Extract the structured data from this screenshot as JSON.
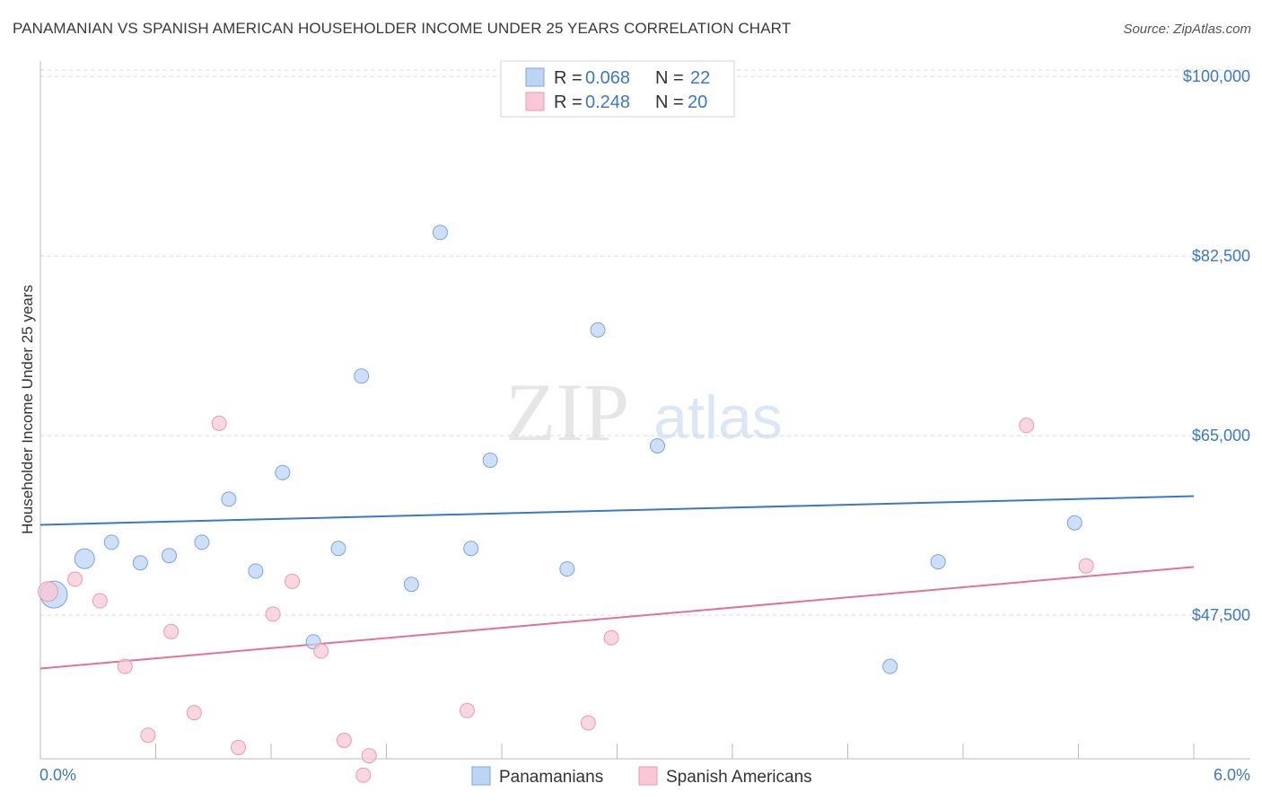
{
  "header": {
    "title": "PANAMANIAN VS SPANISH AMERICAN HOUSEHOLDER INCOME UNDER 25 YEARS CORRELATION CHART",
    "source": "Source: ZipAtlas.com"
  },
  "watermark": {
    "zip": "ZIP",
    "atlas": "atlas"
  },
  "colors": {
    "blue": "#3b78c8",
    "blue_fill": "#bcd5f5",
    "pink": "#e0729b",
    "pink_fill": "#f8c8d6",
    "grid": "#d9d9d9",
    "axis": "#bbbbbb"
  },
  "legend": {
    "rows": [
      {
        "r_label": "R = ",
        "r_value": "0.068",
        "n_label": "N = ",
        "n_value": "22",
        "series": "blue"
      },
      {
        "r_label": "R = ",
        "r_value": "0.248",
        "n_label": "N = ",
        "n_value": "20",
        "series": "pink"
      }
    ]
  },
  "bottom_legend": [
    "Panamanians",
    "Spanish Americans"
  ],
  "chart_data": {
    "type": "scatter",
    "title": "PANAMANIAN VS SPANISH AMERICAN HOUSEHOLDER INCOME UNDER 25 YEARS CORRELATION CHART",
    "xlabel": "",
    "ylabel": "Householder Income Under 25 years",
    "xlim": [
      0,
      6
    ],
    "ylim": [
      33500,
      101500
    ],
    "x_tick_labels": [
      "0.0%",
      "6.0%"
    ],
    "y_ticks": [
      47500,
      65000,
      82500,
      100000
    ],
    "y_tick_labels": [
      "$47,500",
      "$65,000",
      "$82,500",
      "$100,000"
    ],
    "grid": true,
    "series": [
      {
        "name": "Panamanians",
        "color": "blue",
        "r": 0.068,
        "n": 22,
        "trend": {
          "x": [
            0,
            6
          ],
          "y": [
            56300,
            59100
          ]
        },
        "points": [
          {
            "x": 0.07,
            "y": 49500,
            "size": "large"
          },
          {
            "x": 0.23,
            "y": 53000,
            "size": "medium"
          },
          {
            "x": 0.37,
            "y": 54600
          },
          {
            "x": 0.52,
            "y": 52600
          },
          {
            "x": 0.67,
            "y": 53300
          },
          {
            "x": 0.84,
            "y": 54600
          },
          {
            "x": 0.98,
            "y": 58800
          },
          {
            "x": 1.12,
            "y": 51800
          },
          {
            "x": 1.26,
            "y": 61400
          },
          {
            "x": 1.42,
            "y": 44900
          },
          {
            "x": 1.55,
            "y": 54000
          },
          {
            "x": 1.67,
            "y": 70800
          },
          {
            "x": 1.93,
            "y": 50500
          },
          {
            "x": 2.08,
            "y": 84800
          },
          {
            "x": 2.24,
            "y": 54000
          },
          {
            "x": 2.34,
            "y": 62600
          },
          {
            "x": 2.74,
            "y": 52000
          },
          {
            "x": 2.9,
            "y": 75300
          },
          {
            "x": 3.21,
            "y": 64000
          },
          {
            "x": 4.42,
            "y": 42500
          },
          {
            "x": 4.67,
            "y": 52700
          },
          {
            "x": 5.38,
            "y": 56500
          }
        ]
      },
      {
        "name": "Spanish Americans",
        "color": "pink",
        "r": 0.248,
        "n": 20,
        "trend": {
          "x": [
            0,
            6
          ],
          "y": [
            42300,
            52200
          ]
        },
        "points": [
          {
            "x": 0.04,
            "y": 49800,
            "size": "medium"
          },
          {
            "x": 0.18,
            "y": 51000
          },
          {
            "x": 0.31,
            "y": 48900
          },
          {
            "x": 0.44,
            "y": 42500
          },
          {
            "x": 0.56,
            "y": 35800
          },
          {
            "x": 0.68,
            "y": 45900
          },
          {
            "x": 0.8,
            "y": 38000
          },
          {
            "x": 0.93,
            "y": 66200
          },
          {
            "x": 1.03,
            "y": 34600
          },
          {
            "x": 1.21,
            "y": 47600
          },
          {
            "x": 1.31,
            "y": 50800
          },
          {
            "x": 1.46,
            "y": 44000
          },
          {
            "x": 1.58,
            "y": 35300
          },
          {
            "x": 1.71,
            "y": 33800
          },
          {
            "x": 1.68,
            "y": 31900
          },
          {
            "x": 2.22,
            "y": 38200
          },
          {
            "x": 2.85,
            "y": 37000
          },
          {
            "x": 2.97,
            "y": 45300
          },
          {
            "x": 5.13,
            "y": 66000
          },
          {
            "x": 5.44,
            "y": 52300
          }
        ]
      }
    ]
  }
}
